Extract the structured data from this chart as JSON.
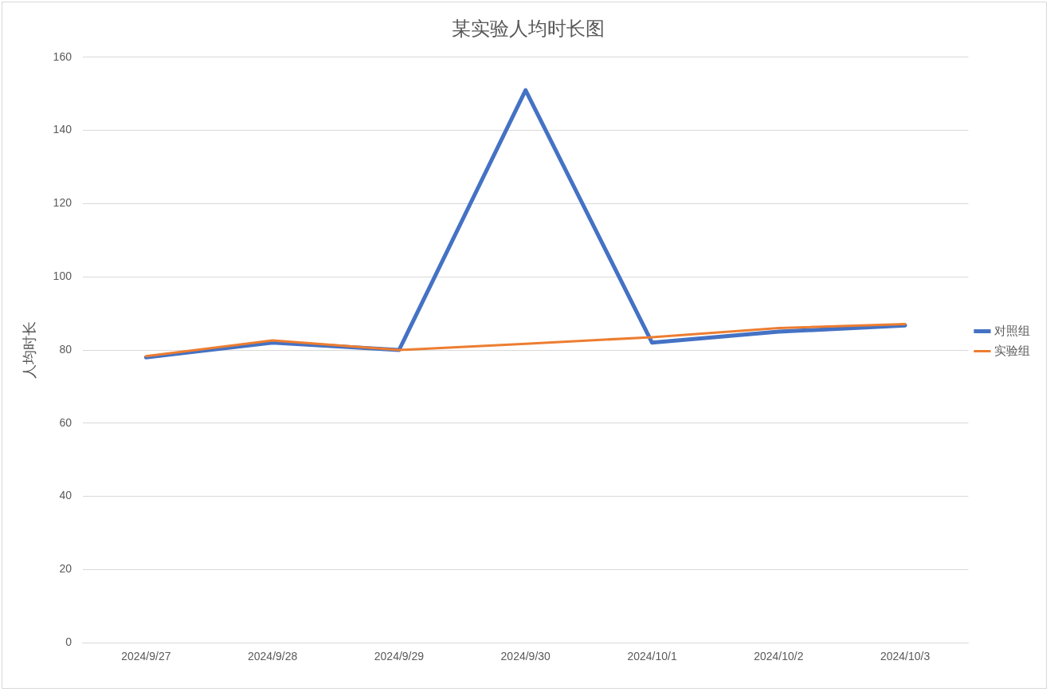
{
  "chart_data": {
    "type": "line",
    "title": "某实验人均时长图",
    "ylabel": "人均时长",
    "categories": [
      "2024/9/27",
      "2024/9/28",
      "2024/9/29",
      "2024/9/30",
      "2024/10/1",
      "2024/10/2",
      "2024/10/3"
    ],
    "series": [
      {
        "name": "对照组",
        "color": "#4472c4",
        "values": [
          78,
          82,
          80,
          151,
          82,
          85,
          86.7
        ]
      },
      {
        "name": "实验组",
        "color": "#ed7d31",
        "values": [
          78.3,
          82.6,
          80,
          81.7,
          83.5,
          86,
          87.1
        ]
      }
    ],
    "ylim": [
      0,
      160
    ],
    "yticks": [
      0,
      20,
      40,
      60,
      80,
      100,
      120,
      140,
      160
    ],
    "grid": "y",
    "legend": "right",
    "marker": "none",
    "line_style": "solid"
  }
}
